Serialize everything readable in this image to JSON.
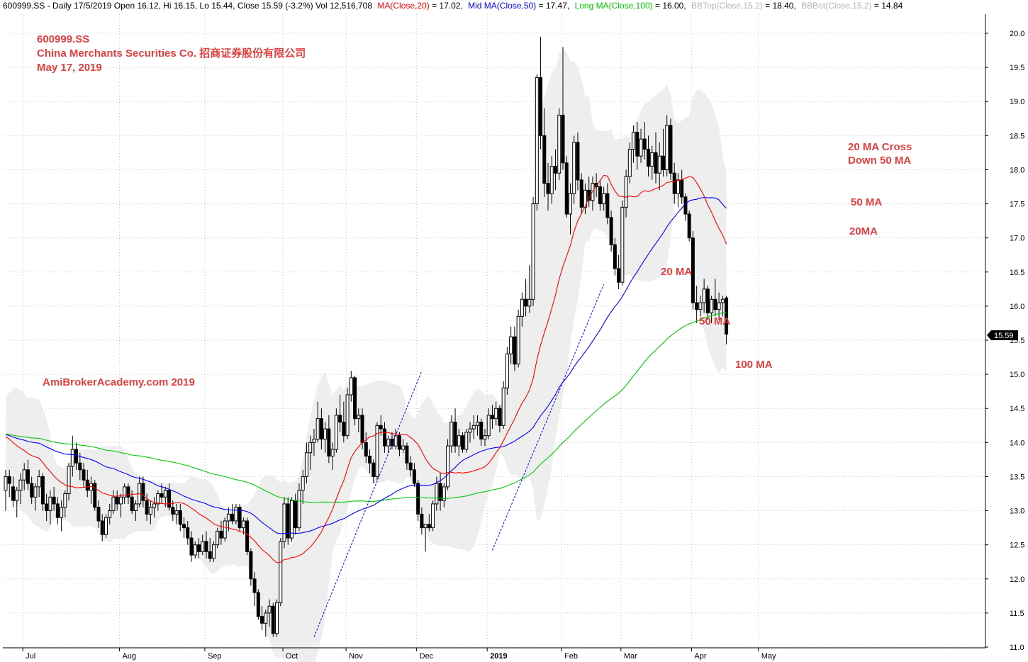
{
  "header": {
    "prefix": "600999.SS - Daily 17/5/2019 Open 16.12, Hi 16.15, Lo 15.44, Close 15.59 (-3.2%) Vol 12,516,708",
    "ma20_label": "MA(Close,20)",
    "ma20_value": " = 17.02,",
    "ma50_label": "Mid MA(Close,50)",
    "ma50_value": " = 17.47,",
    "ma100_label": "Long MA(Close,100)",
    "ma100_value": " = 16.00,",
    "bbtop_label": "BBTop(Close,15,2)",
    "bbtop_value": " = 18.40,",
    "bbbot_label": "BBBot(Close,15,2)",
    "bbbot_value": " = 14.84"
  },
  "title": {
    "line1": "600999.SS",
    "line2": "China Merchants Securities Co.   招商证券股份有限公司",
    "line3": "May 17, 2019"
  },
  "watermark": "AmiBrokerAcademy.com   2019",
  "annotations": {
    "cross_line1": "20 MA Cross",
    "cross_line2": "Down 50 MA",
    "ma50_right": "50 MA",
    "ma20_right": "20MA",
    "ma20_mid": "20 MA",
    "ma50_mid": "50 MA",
    "ma100_mid": "100 MA"
  },
  "price_badge": "15.59",
  "colors": {
    "ma20": "#ff0000",
    "ma50": "#0000ff",
    "ma100": "#00c800",
    "bollinger_fill": "#ebebeb",
    "annotation": "#e04040",
    "trendline": "#0000ff",
    "header_bb": "#b4b4b4"
  },
  "chart_data": {
    "type": "candlestick",
    "symbol": "600999.SS",
    "ylim": [
      11.0,
      20.0
    ],
    "y_ticks": [
      "11.0",
      "11.5",
      "12.0",
      "12.5",
      "13.0",
      "13.5",
      "14.0",
      "14.5",
      "15.0",
      "15.5",
      "16.0",
      "16.5",
      "17.0",
      "17.5",
      "18.0",
      "18.5",
      "19.0",
      "19.5",
      "20.0"
    ],
    "month_labels": [
      "Jul",
      "Aug",
      "Sep",
      "Oct",
      "Nov",
      "Dec",
      "2019",
      "Feb",
      "Mar",
      "Apr",
      "May"
    ],
    "month_start_index": [
      5,
      31,
      54,
      75,
      92,
      111,
      130,
      150,
      166,
      185,
      203
    ],
    "grid": true,
    "ohlc": [
      [
        13.3,
        13.6,
        13.0,
        13.5
      ],
      [
        13.5,
        13.6,
        13.2,
        13.4
      ],
      [
        13.35,
        13.5,
        13.05,
        13.15
      ],
      [
        13.15,
        13.35,
        12.9,
        13.3
      ],
      [
        13.3,
        13.55,
        13.1,
        13.45
      ],
      [
        13.45,
        13.7,
        13.3,
        13.6
      ],
      [
        13.6,
        13.75,
        13.3,
        13.4
      ],
      [
        13.4,
        13.5,
        13.1,
        13.2
      ],
      [
        13.2,
        13.4,
        13.0,
        13.35
      ],
      [
        13.35,
        13.6,
        13.2,
        13.5
      ],
      [
        13.5,
        13.55,
        13.0,
        13.1
      ],
      [
        13.1,
        13.25,
        12.85,
        13.0
      ],
      [
        13.0,
        13.3,
        12.8,
        13.2
      ],
      [
        13.2,
        13.35,
        13.0,
        13.1
      ],
      [
        13.1,
        13.2,
        12.8,
        12.9
      ],
      [
        12.9,
        13.15,
        12.7,
        13.05
      ],
      [
        13.05,
        13.3,
        12.9,
        13.25
      ],
      [
        13.25,
        13.7,
        13.15,
        13.65
      ],
      [
        13.65,
        14.1,
        13.5,
        13.9
      ],
      [
        13.9,
        14.0,
        13.6,
        13.7
      ],
      [
        13.7,
        13.85,
        13.45,
        13.6
      ],
      [
        13.6,
        13.7,
        13.35,
        13.45
      ],
      [
        13.45,
        13.6,
        13.2,
        13.3
      ],
      [
        13.3,
        13.5,
        13.1,
        13.4
      ],
      [
        13.4,
        13.45,
        13.0,
        13.05
      ],
      [
        13.05,
        13.15,
        12.75,
        12.85
      ],
      [
        12.85,
        12.95,
        12.55,
        12.65
      ],
      [
        12.65,
        12.95,
        12.6,
        12.9
      ],
      [
        12.9,
        13.1,
        12.8,
        13.0
      ],
      [
        13.0,
        13.3,
        12.95,
        13.2
      ],
      [
        13.2,
        13.3,
        13.0,
        13.1
      ],
      [
        13.1,
        13.25,
        12.9,
        13.2
      ],
      [
        13.2,
        13.4,
        13.1,
        13.35
      ],
      [
        13.35,
        13.4,
        13.1,
        13.2
      ],
      [
        13.2,
        13.3,
        12.95,
        13.0
      ],
      [
        13.0,
        13.15,
        12.85,
        13.1
      ],
      [
        13.1,
        13.5,
        13.05,
        13.4
      ],
      [
        13.4,
        13.5,
        13.05,
        13.15
      ],
      [
        13.15,
        13.25,
        12.85,
        12.95
      ],
      [
        12.95,
        13.15,
        12.8,
        13.05
      ],
      [
        13.05,
        13.2,
        12.9,
        13.1
      ],
      [
        13.1,
        13.3,
        13.0,
        13.25
      ],
      [
        13.25,
        13.4,
        13.1,
        13.2
      ],
      [
        13.2,
        13.35,
        13.05,
        13.3
      ],
      [
        13.3,
        13.4,
        13.0,
        13.05
      ],
      [
        13.05,
        13.15,
        12.85,
        12.95
      ],
      [
        12.95,
        13.1,
        12.8,
        13.0
      ],
      [
        13.0,
        13.1,
        12.7,
        12.8
      ],
      [
        12.8,
        12.9,
        12.6,
        12.75
      ],
      [
        12.75,
        12.85,
        12.5,
        12.6
      ],
      [
        12.6,
        12.7,
        12.25,
        12.35
      ],
      [
        12.35,
        12.55,
        12.3,
        12.5
      ],
      [
        12.5,
        12.6,
        12.3,
        12.4
      ],
      [
        12.4,
        12.65,
        12.35,
        12.55
      ],
      [
        12.55,
        12.7,
        12.3,
        12.4
      ],
      [
        12.4,
        12.6,
        12.25,
        12.3
      ],
      [
        12.3,
        12.55,
        12.25,
        12.5
      ],
      [
        12.5,
        12.75,
        12.45,
        12.7
      ],
      [
        12.7,
        12.85,
        12.5,
        12.6
      ],
      [
        12.6,
        12.9,
        12.55,
        12.85
      ],
      [
        12.85,
        13.05,
        12.7,
        12.95
      ],
      [
        12.95,
        13.1,
        12.8,
        12.85
      ],
      [
        12.85,
        13.1,
        12.8,
        13.05
      ],
      [
        13.05,
        13.1,
        12.7,
        12.75
      ],
      [
        12.75,
        12.9,
        12.65,
        12.85
      ],
      [
        12.85,
        12.9,
        12.35,
        12.4
      ],
      [
        12.4,
        12.45,
        11.9,
        12.0
      ],
      [
        12.0,
        12.1,
        11.6,
        11.8
      ],
      [
        11.8,
        11.85,
        11.4,
        11.45
      ],
      [
        11.45,
        11.6,
        11.25,
        11.35
      ],
      [
        11.35,
        11.55,
        11.15,
        11.5
      ],
      [
        11.5,
        11.7,
        11.3,
        11.6
      ],
      [
        11.6,
        11.65,
        11.15,
        11.2
      ],
      [
        11.2,
        11.7,
        11.15,
        11.65
      ],
      [
        11.65,
        12.6,
        11.6,
        12.55
      ],
      [
        12.55,
        13.2,
        12.45,
        13.1
      ],
      [
        13.1,
        13.2,
        12.5,
        12.6
      ],
      [
        12.6,
        13.2,
        12.55,
        13.15
      ],
      [
        13.15,
        13.25,
        12.65,
        12.75
      ],
      [
        12.75,
        13.4,
        12.7,
        13.3
      ],
      [
        13.3,
        13.6,
        13.1,
        13.5
      ],
      [
        13.5,
        14.0,
        13.4,
        13.85
      ],
      [
        13.85,
        14.1,
        13.6,
        14.0
      ],
      [
        14.0,
        14.2,
        13.8,
        14.05
      ],
      [
        14.05,
        14.6,
        14.0,
        14.35
      ],
      [
        14.35,
        14.5,
        13.9,
        14.05
      ],
      [
        14.05,
        14.3,
        13.85,
        14.2
      ],
      [
        14.2,
        14.4,
        13.7,
        13.8
      ],
      [
        13.8,
        14.0,
        13.6,
        13.9
      ],
      [
        13.9,
        14.5,
        13.85,
        14.4
      ],
      [
        14.4,
        14.7,
        14.15,
        14.3
      ],
      [
        14.3,
        14.6,
        14.0,
        14.1
      ],
      [
        14.1,
        14.8,
        14.05,
        14.7
      ],
      [
        14.7,
        15.05,
        14.6,
        14.95
      ],
      [
        14.95,
        14.98,
        14.25,
        14.35
      ],
      [
        14.35,
        14.5,
        14.15,
        14.4
      ],
      [
        14.4,
        14.5,
        13.9,
        14.0
      ],
      [
        14.0,
        14.15,
        13.7,
        13.8
      ],
      [
        13.8,
        13.9,
        13.55,
        13.7
      ],
      [
        13.7,
        13.75,
        13.4,
        13.5
      ],
      [
        13.5,
        14.3,
        13.45,
        14.25
      ],
      [
        14.25,
        14.4,
        14.1,
        14.2
      ],
      [
        14.2,
        14.3,
        13.85,
        13.95
      ],
      [
        13.95,
        14.1,
        13.85,
        14.05
      ],
      [
        14.05,
        14.15,
        13.9,
        13.95
      ],
      [
        13.95,
        14.2,
        13.9,
        14.1
      ],
      [
        14.1,
        14.15,
        13.8,
        13.9
      ],
      [
        13.9,
        14.05,
        13.85,
        13.95
      ],
      [
        13.95,
        14.0,
        13.6,
        13.7
      ],
      [
        13.7,
        13.8,
        13.5,
        13.6
      ],
      [
        13.6,
        13.7,
        13.35,
        13.4
      ],
      [
        13.4,
        13.45,
        12.85,
        12.95
      ],
      [
        12.95,
        13.05,
        12.65,
        12.75
      ],
      [
        12.75,
        12.8,
        12.4,
        12.8
      ],
      [
        12.8,
        12.95,
        12.7,
        12.75
      ],
      [
        12.75,
        13.15,
        12.7,
        13.1
      ],
      [
        13.1,
        13.5,
        13.0,
        13.4
      ],
      [
        13.4,
        13.55,
        13.0,
        13.15
      ],
      [
        13.15,
        13.4,
        13.05,
        13.35
      ],
      [
        13.35,
        14.05,
        13.3,
        13.95
      ],
      [
        13.95,
        14.4,
        13.85,
        14.3
      ],
      [
        14.3,
        14.5,
        13.85,
        13.95
      ],
      [
        13.95,
        14.2,
        13.8,
        14.1
      ],
      [
        14.1,
        14.15,
        13.85,
        13.9
      ],
      [
        13.9,
        14.2,
        13.85,
        14.15
      ],
      [
        14.15,
        14.3,
        14.0,
        14.2
      ],
      [
        14.2,
        14.4,
        14.05,
        14.25
      ],
      [
        14.25,
        14.4,
        14.1,
        14.3
      ],
      [
        14.3,
        14.35,
        13.95,
        14.05
      ],
      [
        14.05,
        14.2,
        13.95,
        14.1
      ],
      [
        14.1,
        14.5,
        14.05,
        14.4
      ],
      [
        14.4,
        14.55,
        14.2,
        14.35
      ],
      [
        14.35,
        14.6,
        14.25,
        14.5
      ],
      [
        14.5,
        14.55,
        14.15,
        14.25
      ],
      [
        14.25,
        14.9,
        14.2,
        14.8
      ],
      [
        14.8,
        15.4,
        14.7,
        15.3
      ],
      [
        15.3,
        15.7,
        15.15,
        15.55
      ],
      [
        15.55,
        15.7,
        15.05,
        15.15
      ],
      [
        15.15,
        15.95,
        15.1,
        15.85
      ],
      [
        15.85,
        16.2,
        15.7,
        16.1
      ],
      [
        16.1,
        16.4,
        15.85,
        16.0
      ],
      [
        16.0,
        16.6,
        15.9,
        16.1
      ],
      [
        16.1,
        17.6,
        16.0,
        17.5
      ],
      [
        17.5,
        19.4,
        17.4,
        19.35
      ],
      [
        19.35,
        19.95,
        18.3,
        18.5
      ],
      [
        18.5,
        18.9,
        17.6,
        17.8
      ],
      [
        17.8,
        18.1,
        17.4,
        17.65
      ],
      [
        17.65,
        18.2,
        17.5,
        18.05
      ],
      [
        18.05,
        18.3,
        17.7,
        17.95
      ],
      [
        17.95,
        18.9,
        17.85,
        18.8
      ],
      [
        18.8,
        19.8,
        18.0,
        18.1
      ],
      [
        18.1,
        18.2,
        17.3,
        17.35
      ],
      [
        17.35,
        17.8,
        17.05,
        17.65
      ],
      [
        17.65,
        18.5,
        17.5,
        18.4
      ],
      [
        18.4,
        18.55,
        17.7,
        17.85
      ],
      [
        17.85,
        17.95,
        17.35,
        17.45
      ],
      [
        17.45,
        17.8,
        17.35,
        17.7
      ],
      [
        17.7,
        17.9,
        17.45,
        17.55
      ],
      [
        17.55,
        17.9,
        17.4,
        17.8
      ],
      [
        17.8,
        17.95,
        17.6,
        17.75
      ],
      [
        17.75,
        17.85,
        17.4,
        17.5
      ],
      [
        17.5,
        17.75,
        17.4,
        17.65
      ],
      [
        17.65,
        17.8,
        17.2,
        17.3
      ],
      [
        17.3,
        17.4,
        16.8,
        16.9
      ],
      [
        16.9,
        17.0,
        16.45,
        16.55
      ],
      [
        16.55,
        16.75,
        16.25,
        16.35
      ],
      [
        16.35,
        17.55,
        16.3,
        17.45
      ],
      [
        17.45,
        18.0,
        17.3,
        17.9
      ],
      [
        17.9,
        18.4,
        17.8,
        18.3
      ],
      [
        18.3,
        18.65,
        18.1,
        18.55
      ],
      [
        18.55,
        18.7,
        18.0,
        18.2
      ],
      [
        18.2,
        18.6,
        18.1,
        18.45
      ],
      [
        18.45,
        18.7,
        18.15,
        18.3
      ],
      [
        18.3,
        18.5,
        17.9,
        18.05
      ],
      [
        18.05,
        18.35,
        17.85,
        18.25
      ],
      [
        18.25,
        18.55,
        17.8,
        17.95
      ],
      [
        17.95,
        18.4,
        17.7,
        18.2
      ],
      [
        18.2,
        18.6,
        17.9,
        18.0
      ],
      [
        18.0,
        18.8,
        17.9,
        18.65
      ],
      [
        18.65,
        18.75,
        17.85,
        17.95
      ],
      [
        17.95,
        18.1,
        17.5,
        17.65
      ],
      [
        17.65,
        17.95,
        17.45,
        17.85
      ],
      [
        17.85,
        18.0,
        17.5,
        17.6
      ],
      [
        17.6,
        17.65,
        17.25,
        17.35
      ],
      [
        17.35,
        17.4,
        16.95,
        17.0
      ],
      [
        17.0,
        17.1,
        15.95,
        16.05
      ],
      [
        16.05,
        16.3,
        15.75,
        15.95
      ],
      [
        15.95,
        16.15,
        15.85,
        16.05
      ],
      [
        16.05,
        16.4,
        15.9,
        16.25
      ],
      [
        16.25,
        16.3,
        15.8,
        15.9
      ],
      [
        15.9,
        16.15,
        15.75,
        16.1
      ],
      [
        16.1,
        16.4,
        15.85,
        15.95
      ],
      [
        15.95,
        16.2,
        15.8,
        16.05
      ],
      [
        16.05,
        16.15,
        15.85,
        16.1
      ],
      [
        16.12,
        16.15,
        15.44,
        15.59
      ]
    ]
  }
}
